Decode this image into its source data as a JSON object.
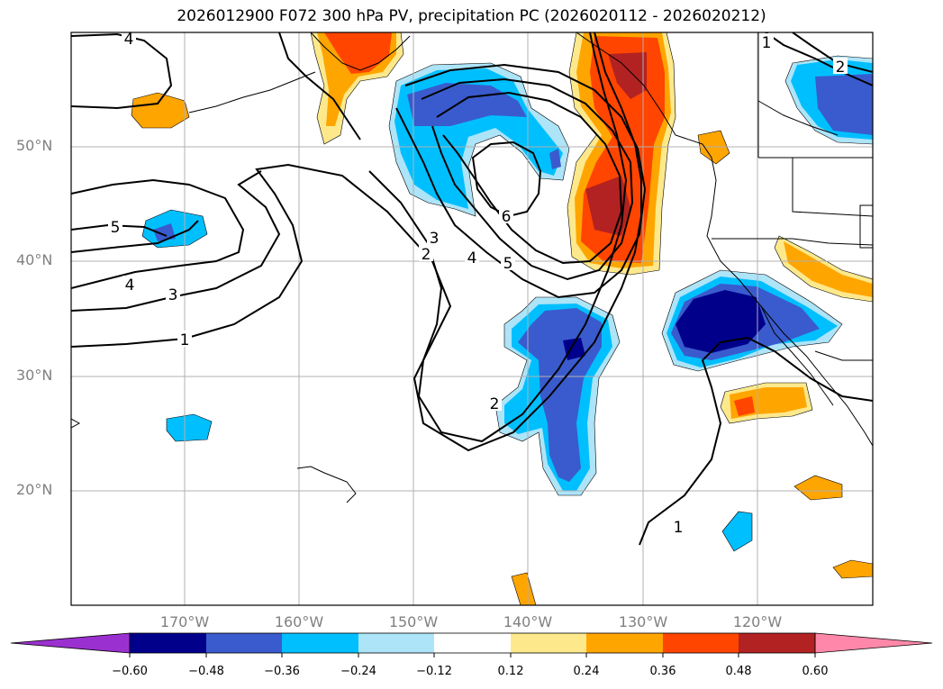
{
  "title": "2026012900 F072 300 hPa PV, precipitation PC (2026020112 - 2026020212)",
  "lat_labels": [
    "50°N",
    "40°N",
    "30°N",
    "20°N"
  ],
  "lon_labels": [
    "170°W",
    "160°W",
    "150°W",
    "140°W",
    "130°W",
    "120°W"
  ],
  "colorbar": {
    "colors": [
      "#9b30d0",
      "#00008b",
      "#3a5bcd",
      "#00bfff",
      "#ade4f8",
      "#ffffff",
      "#fde98c",
      "#ffa500",
      "#ff4500",
      "#b22222",
      "#ff88aa"
    ],
    "tick_labels": [
      "−0.60",
      "−0.48",
      "−0.36",
      "−0.24",
      "−0.12",
      "0.12",
      "0.24",
      "0.36",
      "0.48",
      "0.60"
    ]
  },
  "contour_labels": [
    "4",
    "5",
    "4",
    "3",
    "1",
    "3",
    "2",
    "4",
    "5",
    "6",
    "2",
    "1",
    "1",
    "2"
  ]
}
